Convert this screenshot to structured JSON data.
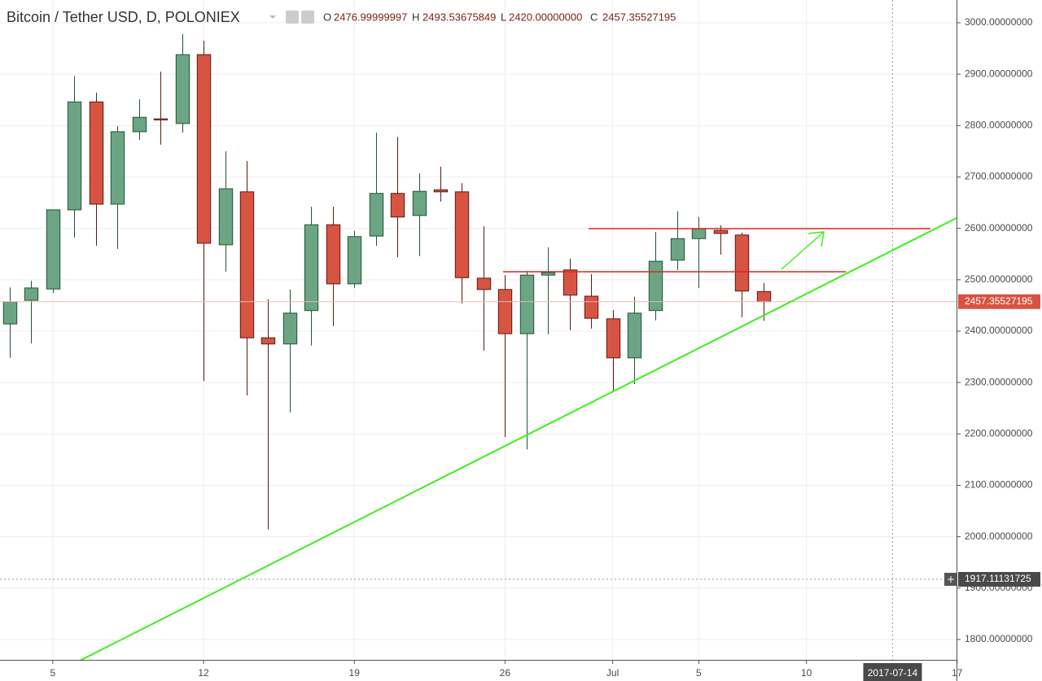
{
  "header": {
    "symbol": "Bitcoin / Tether USD, D, POLONIEX",
    "fields": [
      {
        "label": "O",
        "value": "2476.99999997"
      },
      {
        "label": "H",
        "value": "2493.53675849"
      },
      {
        "label": "L",
        "value": "2420.00000000"
      },
      {
        "label": "C",
        "value": "2457.35527195"
      }
    ]
  },
  "chart_data": {
    "type": "candlestick",
    "x": [
      "2017-06-03",
      "2017-06-04",
      "2017-06-05",
      "2017-06-06",
      "2017-06-07",
      "2017-06-08",
      "2017-06-09",
      "2017-06-10",
      "2017-06-11",
      "2017-06-12",
      "2017-06-13",
      "2017-06-14",
      "2017-06-15",
      "2017-06-16",
      "2017-06-17",
      "2017-06-18",
      "2017-06-19",
      "2017-06-20",
      "2017-06-21",
      "2017-06-22",
      "2017-06-23",
      "2017-06-24",
      "2017-06-25",
      "2017-06-26",
      "2017-06-27",
      "2017-06-28",
      "2017-06-29",
      "2017-06-30",
      "2017-07-01",
      "2017-07-02",
      "2017-07-03",
      "2017-07-04",
      "2017-07-05",
      "2017-07-06",
      "2017-07-07",
      "2017-07-08"
    ],
    "open": [
      2414,
      2460,
      2482,
      2636,
      2846,
      2647,
      2788,
      2813,
      2804,
      2938,
      2568,
      2671,
      2387,
      2375,
      2440,
      2607,
      2492,
      2585,
      2668,
      2625,
      2675,
      2671,
      2503,
      2481,
      2395,
      2509,
      2519,
      2468,
      2424,
      2348,
      2440,
      2538,
      2580,
      2596,
      2587,
      2476.99999997
    ],
    "high": [
      2485,
      2498,
      2636,
      2896,
      2864,
      2799,
      2851,
      2905,
      2978,
      2965,
      2750,
      2731,
      2462,
      2481,
      2642,
      2642,
      2595,
      2786,
      2778,
      2707,
      2720,
      2688,
      2604,
      2509,
      2517,
      2563,
      2541,
      2511,
      2441,
      2467,
      2593,
      2633,
      2622,
      2606,
      2592,
      2493.53675849
    ],
    "low": [
      2348,
      2376,
      2474,
      2582,
      2566,
      2560,
      2772,
      2763,
      2786,
      2303,
      2516,
      2275,
      2014,
      2242,
      2372,
      2410,
      2484,
      2566,
      2544,
      2546,
      2652,
      2454,
      2362,
      2194,
      2170,
      2394,
      2402,
      2405,
      2284,
      2297,
      2421,
      2519,
      2484,
      2549,
      2427,
      2420
    ],
    "close": [
      2457,
      2484,
      2636,
      2846,
      2647,
      2788,
      2816,
      2811,
      2938,
      2571,
      2677,
      2387,
      2375,
      2435,
      2607,
      2492,
      2584,
      2668,
      2622,
      2672,
      2671,
      2504,
      2481,
      2395,
      2509,
      2514,
      2470,
      2425,
      2348,
      2435,
      2536,
      2580,
      2599,
      2590,
      2478,
      2457.35527195
    ],
    "up_color": "#6ba583",
    "down_color": "#d75442",
    "xlim": [
      "2017-06-02",
      "2017-07-18"
    ],
    "xticks": [
      {
        "value": "2017-06-05",
        "label": "5"
      },
      {
        "value": "2017-06-12",
        "label": "12"
      },
      {
        "value": "2017-06-19",
        "label": "19"
      },
      {
        "value": "2017-06-26",
        "label": "26"
      },
      {
        "value": "2017-07-01",
        "label": "Jul"
      },
      {
        "value": "2017-07-05",
        "label": "5"
      },
      {
        "value": "2017-07-10",
        "label": "10"
      },
      {
        "value": "2017-07-17",
        "label": "17"
      }
    ],
    "ylim": [
      1760.4,
      3044.3
    ],
    "yticks": [
      {
        "value": 1800,
        "label": "1800.00000000"
      },
      {
        "value": 1900,
        "label": "1900.00000000"
      },
      {
        "value": 2000,
        "label": "2000.00000000"
      },
      {
        "value": 2100,
        "label": "2100.00000000"
      },
      {
        "value": 2200,
        "label": "2200.00000000"
      },
      {
        "value": 2300,
        "label": "2300.00000000"
      },
      {
        "value": 2400,
        "label": "2400.00000000"
      },
      {
        "value": 2500,
        "label": "2500.00000000"
      },
      {
        "value": 2600,
        "label": "2600.00000000"
      },
      {
        "value": 2700,
        "label": "2700.00000000"
      },
      {
        "value": 2800,
        "label": "2800.00000000"
      },
      {
        "value": 2900,
        "label": "2900.00000000"
      },
      {
        "value": 3000,
        "label": "3000.00000000"
      }
    ],
    "grid": true,
    "last_price": 2457.35527195,
    "crosshair": {
      "price": 1917.11131725,
      "date": "2017-07-14"
    }
  }
}
